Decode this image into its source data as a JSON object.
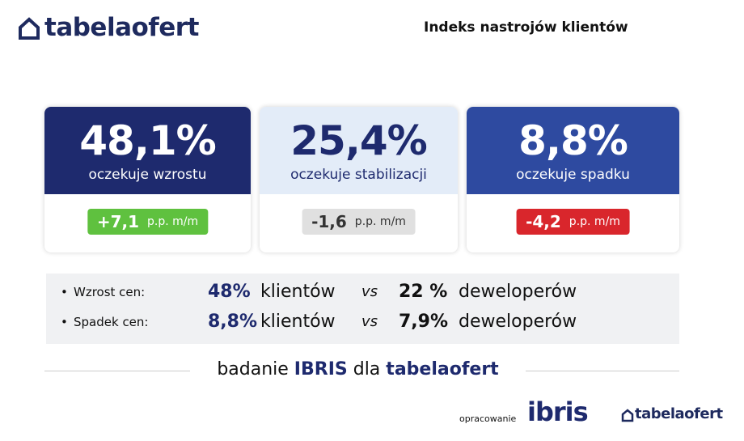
{
  "header": {
    "logo": "tabelaofert",
    "title": "Indeks nastrojów klientów"
  },
  "cards": [
    {
      "value": "48,1%",
      "label": "oczekuje wzrostu",
      "change": "+7,1",
      "unit": "p.p. m/m"
    },
    {
      "value": "25,4%",
      "label": "oczekuje stabilizacji",
      "change": "-1,6",
      "unit": "p.p. m/m"
    },
    {
      "value": "8,8%",
      "label": "oczekuje spadku",
      "change": "-4,2",
      "unit": "p.p. m/m"
    }
  ],
  "comparison": {
    "rows": [
      {
        "label": "Wzrost cen:",
        "clients_value": "48%",
        "clients": "klientów",
        "vs": "vs",
        "developers_value": "22 %",
        "developers": "deweloperów"
      },
      {
        "label": "Spadek cen:",
        "clients_value": "8,8%",
        "clients": "klientów",
        "vs": "vs",
        "developers_value": "7,9%",
        "developers": "deweloperów"
      }
    ]
  },
  "footer": {
    "caption": [
      "badanie",
      "IBRIS",
      "dla",
      "tabelaofert"
    ],
    "credit": "opracowanie",
    "ibris_logo": "ibris",
    "logo": "tabelaofert"
  }
}
